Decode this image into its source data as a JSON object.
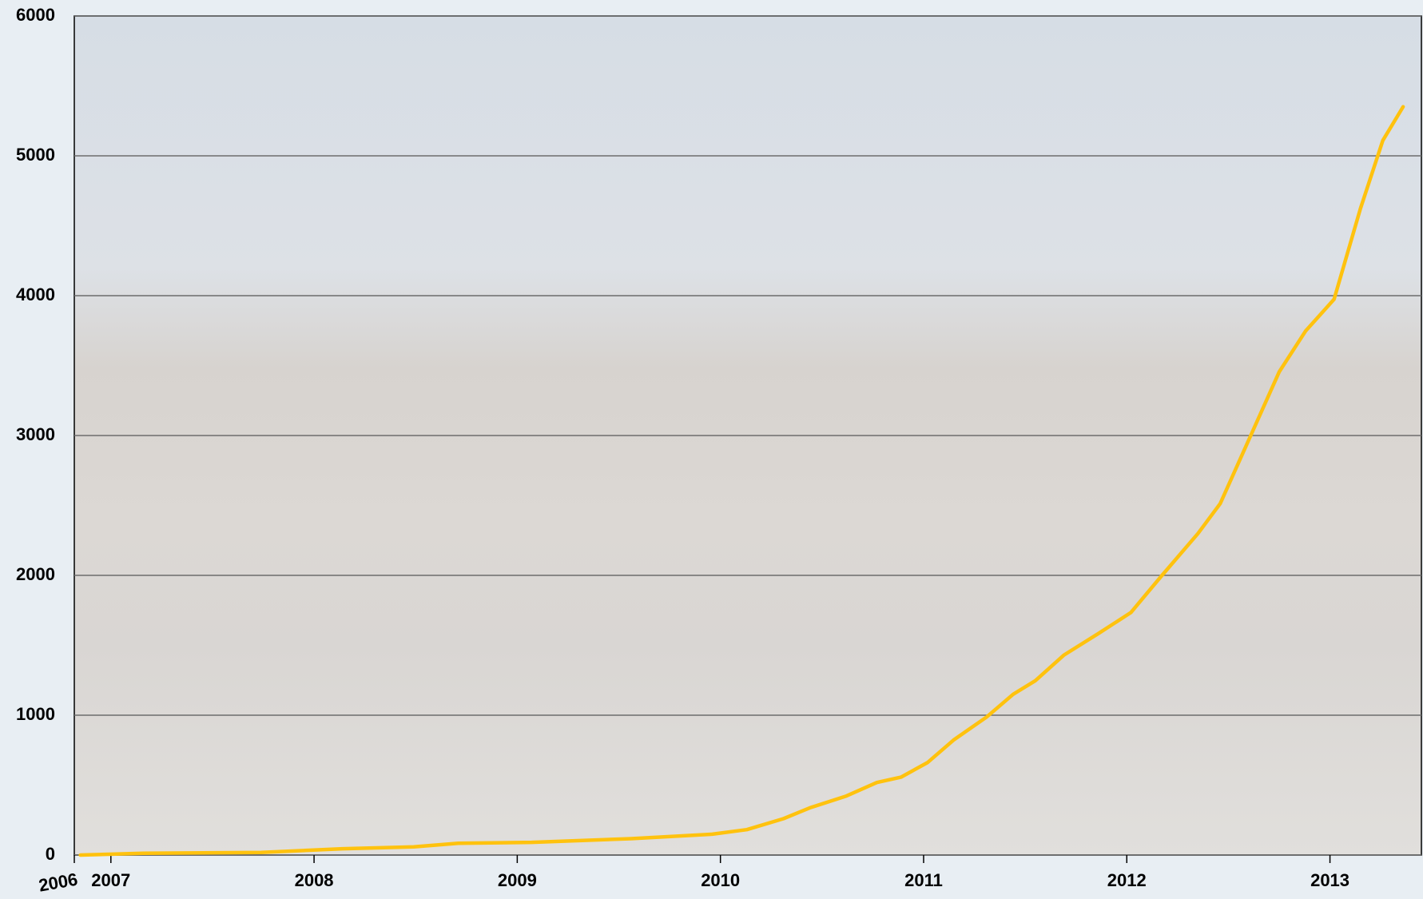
{
  "chart_data": {
    "type": "line",
    "x": [
      2006.85,
      2007.16,
      2007.74,
      2008.14,
      2008.49,
      2008.71,
      2009.07,
      2009.56,
      2009.96,
      2010.13,
      2010.31,
      2010.44,
      2010.62,
      2010.77,
      2010.89,
      2011.02,
      2011.15,
      2011.31,
      2011.44,
      2011.55,
      2011.69,
      2011.86,
      2012.02,
      2012.17,
      2012.35,
      2012.46,
      2012.61,
      2012.75,
      2012.88,
      2013.02,
      2013.15,
      2013.26,
      2013.36
    ],
    "series": [
      {
        "color": "#ffc20e",
        "values": [
          0,
          13,
          19,
          45,
          58,
          84,
          91,
          117,
          149,
          182,
          260,
          338,
          422,
          519,
          558,
          662,
          825,
          987,
          1149,
          1247,
          1429,
          1584,
          1734,
          1994,
          2299,
          2513,
          3000,
          3455,
          3747,
          3974,
          4623,
          5110,
          5351
        ]
      }
    ],
    "xlim": [
      2006.82,
      2013.45
    ],
    "xticks": [
      {
        "value": 2006.82,
        "label": "2006"
      },
      2007,
      2008,
      2009,
      2010,
      2011,
      2012,
      2013
    ],
    "ylim": [
      0,
      6000
    ],
    "yticks": [
      0,
      1000,
      2000,
      3000,
      4000,
      5000,
      6000
    ],
    "grid": true
  }
}
